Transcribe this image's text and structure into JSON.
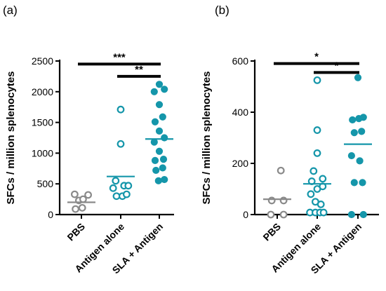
{
  "colors": {
    "pbs": "#8a8a8a",
    "teal": "#1596aa",
    "axis": "#000000"
  },
  "chart_data": [
    {
      "type": "scatter",
      "panel_label": "(a)",
      "ylabel": "SFCs / million splenocytes",
      "ylim": [
        0,
        2500
      ],
      "yticks": [
        0,
        500,
        1000,
        1500,
        2000,
        2500
      ],
      "categories": [
        "PBS",
        "Antigen alone",
        "SLA + Antigen"
      ],
      "series": [
        {
          "category": "PBS",
          "style": "open",
          "color": "#8a8a8a",
          "median": 200,
          "points": [
            [
              -0.4,
              330
            ],
            [
              -0.15,
              230
            ],
            [
              0.1,
              250
            ],
            [
              0.4,
              320
            ],
            [
              -0.35,
              90
            ],
            [
              0.05,
              110
            ]
          ]
        },
        {
          "category": "Antigen alone",
          "style": "open",
          "color": "#1596aa",
          "median": 620,
          "points": [
            [
              0,
              1710
            ],
            [
              0,
              1150
            ],
            [
              -0.3,
              550
            ],
            [
              0.2,
              470
            ],
            [
              -0.45,
              430
            ],
            [
              0.45,
              470
            ],
            [
              -0.25,
              300
            ],
            [
              0.1,
              300
            ],
            [
              0.35,
              330
            ]
          ]
        },
        {
          "category": "SLA + Antigen",
          "style": "filled",
          "color": "#1596aa",
          "median": 1230,
          "points": [
            [
              0,
              2120
            ],
            [
              -0.3,
              2000
            ],
            [
              0.3,
              2040
            ],
            [
              0,
              1790
            ],
            [
              -0.25,
              1510
            ],
            [
              0.2,
              1590
            ],
            [
              0,
              1360
            ],
            [
              0.3,
              1250
            ],
            [
              -0.3,
              1180
            ],
            [
              0,
              1030
            ],
            [
              -0.25,
              880
            ],
            [
              0.25,
              900
            ],
            [
              -0.2,
              720
            ],
            [
              0.2,
              760
            ],
            [
              -0.05,
              550
            ],
            [
              0.3,
              570
            ]
          ]
        }
      ],
      "significance": [
        {
          "from": 0,
          "to": 2,
          "y": 2450,
          "label": "***"
        },
        {
          "from": 1,
          "to": 2,
          "y": 2250,
          "label": "**"
        }
      ]
    },
    {
      "type": "scatter",
      "panel_label": "(b)",
      "ylabel": "SFCs / million splenocytes",
      "ylim": [
        0,
        600
      ],
      "yticks": [
        0,
        200,
        400,
        600
      ],
      "categories": [
        "PBS",
        "Antigen alone",
        "SLA + Antigen"
      ],
      "series": [
        {
          "category": "PBS",
          "style": "open",
          "color": "#8a8a8a",
          "median": 60,
          "points": [
            [
              0.2,
              172
            ],
            [
              -0.3,
              55
            ],
            [
              0.35,
              55
            ],
            [
              -0.35,
              0
            ],
            [
              0.35,
              0
            ]
          ]
        },
        {
          "category": "Antigen alone",
          "style": "open",
          "color": "#1596aa",
          "median": 120,
          "points": [
            [
              0,
              525
            ],
            [
              0,
              330
            ],
            [
              0,
              240
            ],
            [
              -0.2,
              170
            ],
            [
              0.3,
              140
            ],
            [
              -0.3,
              130
            ],
            [
              0.3,
              110
            ],
            [
              0,
              100
            ],
            [
              -0.35,
              80
            ],
            [
              -0.1,
              50
            ],
            [
              0.2,
              40
            ],
            [
              -0.4,
              8
            ],
            [
              -0.1,
              8
            ],
            [
              0.15,
              8
            ],
            [
              0.35,
              8
            ]
          ]
        },
        {
          "category": "SLA + Antigen",
          "style": "filled",
          "color": "#1596aa",
          "median": 275,
          "points": [
            [
              0,
              535
            ],
            [
              -0.3,
              370
            ],
            [
              0.05,
              375
            ],
            [
              0.3,
              380
            ],
            [
              -0.2,
              320
            ],
            [
              0.2,
              325
            ],
            [
              -0.35,
              230
            ],
            [
              0.1,
              210
            ],
            [
              -0.2,
              125
            ],
            [
              0.25,
              125
            ],
            [
              -0.35,
              0
            ],
            [
              0.3,
              0
            ]
          ]
        }
      ],
      "significance": [
        {
          "from": 0,
          "to": 2,
          "y": 590,
          "label": "*"
        },
        {
          "from": 1,
          "to": 2,
          "y": 555,
          "label": "*"
        }
      ]
    }
  ]
}
